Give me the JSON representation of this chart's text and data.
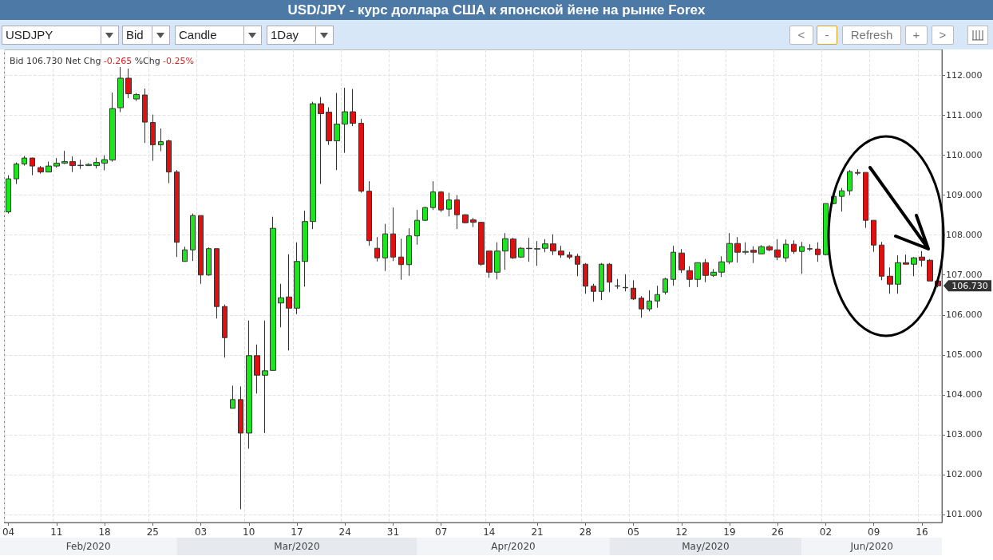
{
  "chart_data": {
    "type": "candlestick",
    "title": "USD/JPY - курс доллара США к японской йене на рынке Forex",
    "categories": [
      "04",
      null,
      null,
      null,
      null,
      null,
      "11",
      null,
      null,
      null,
      null,
      null,
      "18",
      null,
      null,
      null,
      null,
      null,
      "25",
      null,
      null,
      null,
      null,
      null,
      "03",
      null,
      null,
      null,
      null,
      null,
      "10",
      null,
      null,
      null,
      null,
      null,
      "17",
      null,
      null,
      null,
      null,
      null,
      "24",
      null,
      null,
      null,
      null,
      null,
      "31",
      null,
      null,
      null,
      null,
      null,
      "07",
      null,
      null,
      null,
      null,
      null,
      "14",
      null,
      null,
      null,
      null,
      null,
      "21",
      null,
      null,
      null,
      null,
      null,
      "28",
      null,
      null,
      null,
      null,
      null,
      "05",
      null,
      null,
      null,
      null,
      null,
      "12",
      null,
      null,
      null,
      null,
      null,
      "19",
      null,
      null,
      null,
      null,
      null,
      "26",
      null,
      null,
      null,
      null,
      null,
      "02",
      null,
      null,
      null,
      null,
      null,
      "09",
      null,
      null,
      null,
      null,
      null,
      "16",
      null,
      null
    ],
    "ohlc": [
      [
        108.58,
        109.5,
        108.54,
        109.41
      ],
      [
        109.41,
        109.82,
        109.28,
        109.78
      ],
      [
        109.78,
        109.98,
        109.74,
        109.93
      ],
      [
        109.93,
        109.94,
        109.5,
        109.73
      ],
      [
        109.69,
        109.73,
        109.54,
        109.58
      ],
      [
        109.58,
        109.84,
        109.58,
        109.73
      ],
      [
        109.73,
        109.93,
        109.69,
        109.8
      ],
      [
        109.8,
        110.11,
        109.78,
        109.84
      ],
      [
        109.84,
        109.97,
        109.58,
        109.74
      ],
      [
        109.74,
        109.89,
        109.66,
        109.75
      ],
      [
        109.74,
        109.8,
        109.73,
        109.77
      ],
      [
        109.74,
        109.94,
        109.67,
        109.82
      ],
      [
        109.8,
        110.0,
        109.62,
        109.89
      ],
      [
        109.88,
        111.57,
        109.84,
        111.17
      ],
      [
        111.19,
        112.21,
        111.08,
        111.93
      ],
      [
        111.93,
        112.17,
        111.43,
        111.54
      ],
      [
        111.41,
        111.56,
        111.36,
        111.52
      ],
      [
        111.51,
        111.67,
        110.31,
        110.83
      ],
      [
        110.82,
        111.02,
        109.86,
        110.26
      ],
      [
        110.26,
        110.67,
        110.1,
        110.34
      ],
      [
        110.36,
        110.39,
        109.3,
        109.58
      ],
      [
        109.58,
        109.63,
        107.45,
        107.82
      ],
      [
        107.34,
        107.71,
        107.34,
        107.63
      ],
      [
        107.63,
        108.54,
        107.35,
        108.49
      ],
      [
        108.49,
        108.49,
        106.78,
        107.0
      ],
      [
        107.0,
        107.69,
        106.98,
        107.66
      ],
      [
        107.66,
        107.66,
        105.91,
        106.21
      ],
      [
        106.21,
        106.26,
        104.93,
        105.43
      ],
      [
        103.66,
        104.23,
        103.66,
        103.88
      ],
      [
        103.88,
        104.21,
        101.13,
        103.04
      ],
      [
        103.04,
        105.86,
        102.65,
        104.98
      ],
      [
        104.98,
        105.26,
        104.03,
        104.49
      ],
      [
        104.49,
        105.86,
        103.04,
        104.6
      ],
      [
        104.61,
        108.46,
        104.61,
        108.17
      ],
      [
        106.3,
        106.78,
        105.69,
        106.43
      ],
      [
        106.45,
        107.52,
        105.11,
        106.17
      ],
      [
        106.17,
        107.82,
        106.02,
        107.34
      ],
      [
        107.34,
        108.61,
        106.71,
        108.34
      ],
      [
        108.34,
        111.34,
        108.15,
        111.29
      ],
      [
        111.29,
        111.46,
        109.28,
        111.04
      ],
      [
        111.08,
        111.2,
        110.26,
        110.36
      ],
      [
        110.36,
        111.56,
        109.63,
        110.78
      ],
      [
        110.78,
        111.69,
        110.06,
        111.09
      ],
      [
        111.09,
        111.66,
        110.73,
        110.8
      ],
      [
        110.8,
        110.91,
        109.06,
        109.1
      ],
      [
        109.1,
        109.35,
        107.73,
        107.86
      ],
      [
        107.67,
        107.95,
        107.34,
        107.43
      ],
      [
        107.43,
        108.28,
        107.1,
        108.03
      ],
      [
        108.03,
        108.69,
        107.35,
        107.45
      ],
      [
        107.45,
        107.91,
        106.88,
        107.26
      ],
      [
        107.26,
        108.17,
        106.98,
        107.98
      ],
      [
        107.98,
        108.63,
        107.76,
        108.37
      ],
      [
        108.37,
        108.71,
        108.36,
        108.69
      ],
      [
        108.69,
        109.35,
        108.63,
        109.08
      ],
      [
        109.08,
        109.1,
        108.58,
        108.63
      ],
      [
        108.65,
        109.06,
        108.47,
        108.88
      ],
      [
        108.88,
        109.0,
        108.15,
        108.51
      ],
      [
        108.51,
        108.52,
        108.29,
        108.31
      ],
      [
        108.38,
        108.43,
        108.2,
        108.32
      ],
      [
        108.32,
        108.32,
        107.23,
        107.27
      ],
      [
        107.6,
        107.6,
        106.93,
        107.07
      ],
      [
        107.07,
        107.82,
        106.89,
        107.6
      ],
      [
        107.6,
        108.05,
        107.13,
        107.91
      ],
      [
        107.9,
        107.93,
        107.4,
        107.43
      ],
      [
        107.45,
        107.7,
        107.43,
        107.67
      ],
      [
        107.67,
        107.93,
        107.33,
        107.66
      ],
      [
        107.66,
        107.85,
        107.23,
        107.65
      ],
      [
        107.67,
        107.9,
        107.57,
        107.78
      ],
      [
        107.78,
        108.02,
        107.5,
        107.6
      ],
      [
        107.6,
        107.73,
        107.43,
        107.5
      ],
      [
        107.5,
        107.58,
        107.4,
        107.45
      ],
      [
        107.47,
        107.53,
        106.97,
        107.27
      ],
      [
        107.27,
        107.3,
        106.53,
        106.72
      ],
      [
        106.72,
        106.78,
        106.33,
        106.59
      ],
      [
        106.59,
        107.3,
        106.37,
        107.27
      ],
      [
        107.27,
        107.3,
        106.57,
        106.82
      ],
      [
        106.73,
        106.9,
        106.65,
        106.72
      ],
      [
        106.69,
        107.02,
        106.59,
        106.68
      ],
      [
        106.67,
        106.87,
        106.37,
        106.4
      ],
      [
        106.42,
        106.47,
        105.93,
        106.15
      ],
      [
        106.15,
        106.62,
        106.09,
        106.35
      ],
      [
        106.35,
        106.73,
        106.18,
        106.51
      ],
      [
        106.57,
        106.93,
        106.51,
        106.9
      ],
      [
        106.89,
        107.73,
        106.73,
        107.57
      ],
      [
        107.55,
        107.65,
        107.05,
        107.13
      ],
      [
        107.11,
        107.22,
        106.7,
        106.89
      ],
      [
        106.89,
        107.31,
        106.7,
        107.31
      ],
      [
        107.31,
        107.4,
        106.82,
        106.99
      ],
      [
        106.99,
        107.15,
        106.95,
        107.07
      ],
      [
        107.07,
        107.47,
        106.95,
        107.33
      ],
      [
        107.33,
        108.05,
        107.27,
        107.79
      ],
      [
        107.79,
        107.95,
        107.31,
        107.57
      ],
      [
        107.57,
        107.82,
        107.51,
        107.59
      ],
      [
        107.62,
        107.72,
        107.3,
        107.57
      ],
      [
        107.53,
        107.75,
        107.53,
        107.71
      ],
      [
        107.71,
        107.75,
        107.59,
        107.63
      ],
      [
        107.63,
        107.9,
        107.37,
        107.45
      ],
      [
        107.43,
        107.89,
        107.33,
        107.77
      ],
      [
        107.77,
        107.87,
        107.53,
        107.59
      ],
      [
        107.59,
        107.83,
        107.03,
        107.71
      ],
      [
        107.66,
        107.77,
        107.6,
        107.65
      ],
      [
        107.65,
        107.82,
        107.33,
        107.51
      ],
      [
        107.51,
        108.79,
        107.49,
        108.79
      ],
      [
        108.79,
        109.0,
        108.77,
        108.97
      ],
      [
        108.97,
        109.18,
        108.59,
        109.11
      ],
      [
        109.11,
        109.63,
        109.0,
        109.59
      ],
      [
        109.57,
        109.65,
        109.5,
        109.55
      ],
      [
        109.57,
        109.57,
        108.18,
        108.37
      ],
      [
        108.37,
        108.37,
        107.58,
        107.75
      ],
      [
        107.75,
        107.83,
        106.87,
        106.97
      ],
      [
        106.97,
        107.19,
        106.53,
        106.77
      ],
      [
        106.77,
        107.49,
        106.53,
        107.31
      ],
      [
        107.31,
        107.51,
        107.27,
        107.27
      ],
      [
        107.27,
        107.45,
        106.97,
        107.43
      ],
      [
        107.45,
        107.6,
        107.21,
        107.37
      ],
      [
        107.37,
        107.4,
        106.85,
        106.85
      ],
      [
        106.85,
        106.85,
        106.69,
        106.73
      ]
    ],
    "colors": [
      "#1de51d",
      "#1de51d",
      "#1de51d",
      "#e01010",
      "#e01010",
      "#1de51d",
      "#1de51d",
      "#1de51d",
      "#e01010",
      "#1de51d",
      "#1de51d",
      "#1de51d",
      "#1de51d",
      "#1de51d",
      "#1de51d",
      "#e01010",
      "#1de51d",
      "#e01010",
      "#e01010",
      "#1de51d",
      "#e01010",
      "#e01010",
      "#1de51d",
      "#1de51d",
      "#e01010",
      "#1de51d",
      "#e01010",
      "#e01010",
      "#1de51d",
      "#e01010",
      "#1de51d",
      "#e01010",
      "#1de51d",
      "#1de51d",
      "#1de51d",
      "#e01010",
      "#1de51d",
      "#1de51d",
      "#1de51d",
      "#e01010",
      "#e01010",
      "#1de51d",
      "#1de51d",
      "#e01010",
      "#e01010",
      "#e01010",
      "#e01010",
      "#1de51d",
      "#e01010",
      "#e01010",
      "#1de51d",
      "#1de51d",
      "#1de51d",
      "#1de51d",
      "#e01010",
      "#1de51d",
      "#e01010",
      "#e01010",
      "#e01010",
      "#e01010",
      "#e01010",
      "#1de51d",
      "#1de51d",
      "#e01010",
      "#1de51d",
      "#e01010",
      "#e01010",
      "#1de51d",
      "#e01010",
      "#e01010",
      "#e01010",
      "#e01010",
      "#e01010",
      "#e01010",
      "#1de51d",
      "#e01010",
      "#e01010",
      "#e01010",
      "#e01010",
      "#e01010",
      "#1de51d",
      "#1de51d",
      "#1de51d",
      "#1de51d",
      "#e01010",
      "#e01010",
      "#1de51d",
      "#e01010",
      "#1de51d",
      "#1de51d",
      "#1de51d",
      "#e01010",
      "#1de51d",
      "#e01010",
      "#1de51d",
      "#e01010",
      "#e01010",
      "#1de51d",
      "#e01010",
      "#1de51d",
      "#e01010",
      "#e01010",
      "#1de51d",
      "#1de51d",
      "#1de51d",
      "#1de51d",
      "#e01010",
      "#e01010",
      "#e01010",
      "#e01010",
      "#e01010",
      "#1de51d",
      "#e01010",
      "#1de51d",
      "#e01010",
      "#e01010",
      "#e01010"
    ],
    "ylim": [
      100.8,
      112.65
    ],
    "yticks": [
      {
        "value": 101,
        "label": "101.000"
      },
      {
        "value": 102,
        "label": "102.000"
      },
      {
        "value": 103,
        "label": "103.000"
      },
      {
        "value": 104,
        "label": "104.000"
      },
      {
        "value": 105,
        "label": "105.000"
      },
      {
        "value": 106,
        "label": "106.000"
      },
      {
        "value": 107,
        "label": "107.000"
      },
      {
        "value": 108,
        "label": "108.000"
      },
      {
        "value": 109,
        "label": "109.000"
      },
      {
        "value": 110,
        "label": "110.000"
      },
      {
        "value": 111,
        "label": "111.000"
      },
      {
        "value": 112,
        "label": "112.000"
      }
    ],
    "grid": true,
    "annotations": [
      "Bid 106.730 Net Chg",
      "-0.265",
      "%Chg",
      "-0.25%",
      "Feb/2020",
      "Mar/2020",
      "Apr/2020",
      "May/2020",
      "Jun/2020",
      "106.730",
      "USDJPY",
      "Bid",
      "Candle",
      "1Day",
      "<",
      "-",
      "Refresh",
      "+",
      ">"
    ]
  }
}
